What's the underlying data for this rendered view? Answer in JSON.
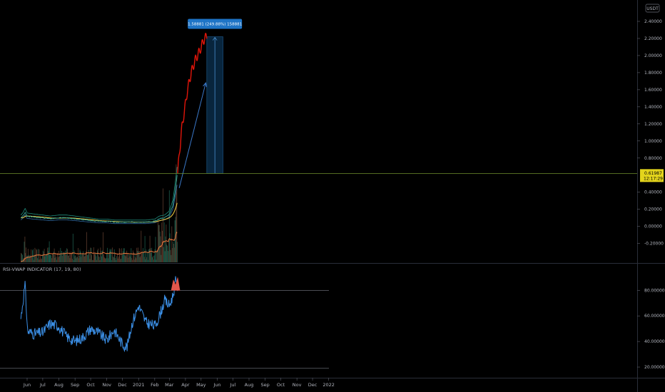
{
  "currency": "USDT",
  "price_label": {
    "value": "0.61987",
    "countdown": "12:17:29"
  },
  "measure_label": "1.58881 (249.88%) 158881",
  "indicator_label": "RSI-VWAP INDICATOR (17, 19, 80)",
  "colors": {
    "background": "#000000",
    "price_line": "#6f8f2d",
    "price_badge": "#e3d41c",
    "projection_red": "#e0150a",
    "projection_arrow": "#3a78c8",
    "measure_box": "#0b3252",
    "measure_label_bg": "#1e74c6",
    "rsi_line": "#3b8fe6",
    "rsi_overbought": "#e2574c",
    "ema_yellow": "#e8c441",
    "band_teal": "#1f8d7c",
    "volume_ma": "#e8763c",
    "volume_bar": "#5a3a2c"
  },
  "chart_data": [
    {
      "type": "line",
      "name": "main-price-chart",
      "x_ticks": [
        "Jun",
        "Jul",
        "Aug",
        "Sep",
        "Oct",
        "Nov",
        "Dec",
        "2021",
        "Feb",
        "Mar",
        "Apr",
        "May",
        "Jun",
        "Jul",
        "Aug",
        "Sep",
        "Oct",
        "Nov",
        "Dec",
        "2022"
      ],
      "y_ticks": [
        "2.40000",
        "2.20000",
        "2.00000",
        "1.80000",
        "1.60000",
        "1.40000",
        "1.20000",
        "1.00000",
        "0.80000",
        "0.60000",
        "0.40000",
        "0.20000",
        "0.00000",
        "-0.20000"
      ],
      "ylim": [
        -0.27,
        2.5
      ],
      "current_price": 0.61987,
      "price_path": [
        [
          "2020-05-20",
          0.1
        ],
        [
          "2020-05-25",
          0.13
        ],
        [
          "2020-05-28",
          0.17
        ],
        [
          "2020-06-01",
          0.12
        ],
        [
          "2020-06-15",
          0.11
        ],
        [
          "2020-07-01",
          0.1
        ],
        [
          "2020-07-15",
          0.09
        ],
        [
          "2020-08-01",
          0.1
        ],
        [
          "2020-08-15",
          0.1
        ],
        [
          "2020-09-01",
          0.09
        ],
        [
          "2020-09-15",
          0.08
        ],
        [
          "2020-10-01",
          0.07
        ],
        [
          "2020-10-15",
          0.06
        ],
        [
          "2020-11-01",
          0.06
        ],
        [
          "2020-11-15",
          0.05
        ],
        [
          "2020-12-01",
          0.05
        ],
        [
          "2020-12-15",
          0.05
        ],
        [
          "2021-01-01",
          0.05
        ],
        [
          "2021-01-15",
          0.05
        ],
        [
          "2021-02-01",
          0.06
        ],
        [
          "2021-02-10",
          0.09
        ],
        [
          "2021-02-20",
          0.1
        ],
        [
          "2021-03-01",
          0.14
        ],
        [
          "2021-03-08",
          0.25
        ],
        [
          "2021-03-13",
          0.45
        ],
        [
          "2021-03-17",
          0.62
        ]
      ],
      "projection": [
        [
          "2021-03-17",
          0.62
        ],
        [
          "2021-03-21",
          0.9
        ],
        [
          "2021-03-25",
          1.15
        ],
        [
          "2021-03-30",
          1.35
        ],
        [
          "2021-04-05",
          1.6
        ],
        [
          "2021-04-12",
          1.8
        ],
        [
          "2021-04-20",
          1.95
        ],
        [
          "2021-04-28",
          2.05
        ],
        [
          "2021-05-06",
          2.18
        ],
        [
          "2021-05-12",
          2.23
        ]
      ],
      "projection_arrow": {
        "from": [
          "2021-03-20",
          0.45
        ],
        "to": [
          "2021-05-10",
          1.68
        ]
      },
      "measure_range": {
        "from_date": "2021-05-12",
        "to_date": "2021-06-12",
        "low": 0.62,
        "high": 2.22
      }
    },
    {
      "type": "line",
      "name": "rsi-vwap-indicator",
      "title": "RSI-VWAP INDICATOR (17, 19, 80)",
      "y_ticks": [
        "80.00000",
        "60.00000",
        "40.00000",
        "20.00000"
      ],
      "ylim": [
        15,
        93
      ],
      "overbought": 80,
      "oversold": 19,
      "series": [
        {
          "values": [
            [
              "2020-05-20",
              58
            ],
            [
              "2020-05-25",
              75
            ],
            [
              "2020-05-28",
              84
            ],
            [
              "2020-06-02",
              48
            ],
            [
              "2020-06-15",
              46
            ],
            [
              "2020-07-01",
              47
            ],
            [
              "2020-07-15",
              54
            ],
            [
              "2020-08-01",
              52
            ],
            [
              "2020-08-15",
              44
            ],
            [
              "2020-09-01",
              40
            ],
            [
              "2020-09-15",
              43
            ],
            [
              "2020-10-01",
              50
            ],
            [
              "2020-10-15",
              47
            ],
            [
              "2020-11-01",
              41
            ],
            [
              "2020-11-15",
              49
            ],
            [
              "2020-12-01",
              38
            ],
            [
              "2020-12-10",
              36
            ],
            [
              "2020-12-20",
              55
            ],
            [
              "2021-01-01",
              68
            ],
            [
              "2021-01-15",
              55
            ],
            [
              "2021-02-01",
              52
            ],
            [
              "2021-02-10",
              60
            ],
            [
              "2021-02-20",
              72
            ],
            [
              "2021-03-01",
              68
            ],
            [
              "2021-03-08",
              76
            ],
            [
              "2021-03-13",
              88
            ],
            [
              "2021-03-17",
              82
            ]
          ]
        }
      ]
    }
  ]
}
